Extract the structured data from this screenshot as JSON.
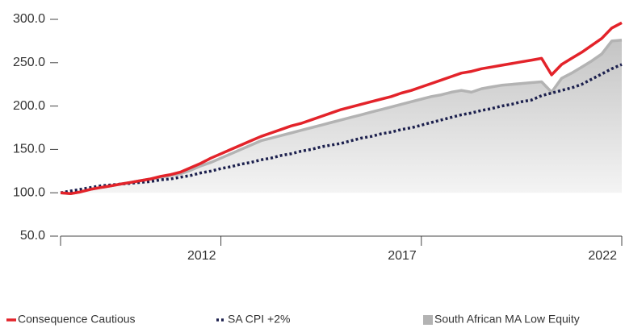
{
  "chart_data": {
    "type": "line",
    "x": [
      2008,
      2008.25,
      2008.5,
      2008.75,
      2009,
      2009.25,
      2009.5,
      2009.75,
      2010,
      2010.25,
      2010.5,
      2010.75,
      2011,
      2011.25,
      2011.5,
      2011.75,
      2012,
      2012.25,
      2012.5,
      2012.75,
      2013,
      2013.25,
      2013.5,
      2013.75,
      2014,
      2014.25,
      2014.5,
      2014.75,
      2015,
      2015.25,
      2015.5,
      2015.75,
      2016,
      2016.25,
      2016.5,
      2016.75,
      2017,
      2017.25,
      2017.5,
      2017.75,
      2018,
      2018.25,
      2018.5,
      2018.75,
      2019,
      2019.25,
      2019.5,
      2019.75,
      2020,
      2020.25,
      2020.5,
      2020.75,
      2021,
      2021.25,
      2021.5,
      2021.75,
      2022
    ],
    "series": [
      {
        "name": "South African MA Low Equity",
        "color": "#b3b3b3",
        "style": "area",
        "values": [
          100,
          99,
          101,
          104,
          106,
          108,
          110,
          112,
          114,
          116,
          118,
          120,
          122,
          126,
          131,
          135,
          140,
          145,
          150,
          155,
          160,
          163,
          166,
          169,
          172,
          175,
          178,
          181,
          184,
          187,
          190,
          193,
          196,
          199,
          202,
          205,
          208,
          211,
          213,
          216,
          218,
          216,
          220,
          222,
          224,
          225,
          226,
          227,
          228,
          216,
          232,
          238,
          245,
          252,
          260,
          275,
          276
        ]
      },
      {
        "name": "SA CPI +2%",
        "color": "#1b1f4d",
        "style": "dotted",
        "values": [
          100,
          102,
          104,
          106,
          108,
          109,
          110,
          111,
          112,
          113,
          115,
          116,
          118,
          120,
          123,
          125,
          128,
          130,
          133,
          135,
          138,
          140,
          143,
          145,
          148,
          150,
          153,
          155,
          157,
          160,
          163,
          165,
          168,
          170,
          173,
          175,
          178,
          181,
          184,
          187,
          190,
          192,
          195,
          197,
          200,
          202,
          205,
          207,
          212,
          215,
          218,
          221,
          225,
          231,
          237,
          243,
          248
        ]
      },
      {
        "name": "Consequence Cautious",
        "color": "#e3232a",
        "style": "line",
        "values": [
          100,
          99,
          101,
          104,
          106,
          108,
          110,
          112,
          114,
          116,
          119,
          121,
          124,
          129,
          134,
          140,
          145,
          150,
          155,
          160,
          165,
          169,
          173,
          177,
          180,
          184,
          188,
          192,
          196,
          199,
          202,
          205,
          208,
          211,
          215,
          218,
          222,
          226,
          230,
          234,
          238,
          240,
          243,
          245,
          247,
          249,
          251,
          253,
          255,
          236,
          248,
          255,
          262,
          270,
          278,
          290,
          296
        ]
      }
    ],
    "xlim": [
      2008,
      2022
    ],
    "xticks": [
      2012,
      2017,
      2022
    ],
    "ylim": [
      50,
      300
    ],
    "yticks": [
      {
        "value": 50,
        "label": "50.0"
      },
      {
        "value": 100,
        "label": "100.0"
      },
      {
        "value": 150,
        "label": "150.0"
      },
      {
        "value": 200,
        "label": "200.0"
      },
      {
        "value": 250,
        "label": "250.0"
      },
      {
        "value": 300,
        "label": "300.0"
      }
    ],
    "legend": "bottom"
  }
}
